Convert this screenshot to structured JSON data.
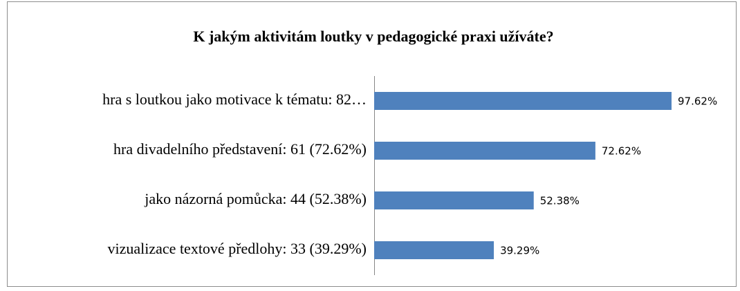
{
  "chart_data": {
    "type": "bar",
    "orientation": "horizontal",
    "title": "K jakým aktivitám loutky v pedagogické praxi užíváte?",
    "categories": [
      "hra s loutkou jako motivace k tématu: 82…",
      "hra divadelního představení: 61 (72.62%)",
      "jako názorná pomůcka: 44 (52.38%)",
      "vizualizace textové předlohy: 33 (39.29%)"
    ],
    "values": [
      97.62,
      72.62,
      52.38,
      39.29
    ],
    "value_labels": [
      "97.62%",
      "72.62%",
      "52.38%",
      "39.29%"
    ],
    "color": "#4f81bd",
    "xlim": [
      0,
      100
    ]
  }
}
